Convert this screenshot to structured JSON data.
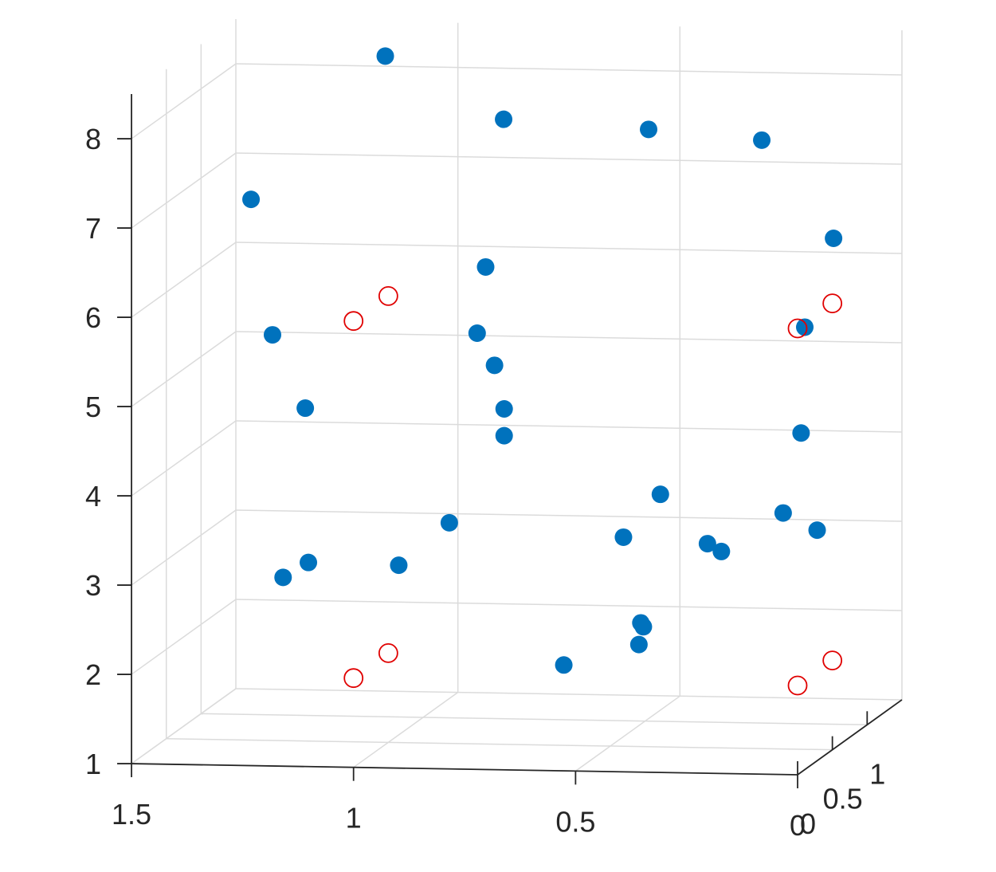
{
  "chart_data": {
    "type": "scatter",
    "title": "",
    "xlabel": "",
    "ylabel": "",
    "zlabel": "",
    "view": "3d",
    "grid": true,
    "colors": {
      "filled": "#0072BD",
      "hollow": "#E00000",
      "grid": "#DBDBDB",
      "axis": "#262626"
    },
    "axes": {
      "x": {
        "lim": [
          0,
          1.5
        ],
        "reversed": true,
        "ticks": [
          1.5,
          1,
          0.5,
          0
        ],
        "tick_labels": [
          "1.5",
          "1",
          "0.5",
          "0"
        ]
      },
      "y": {
        "lim": [
          0,
          1.5
        ],
        "ticks": [
          0,
          0.5,
          1
        ],
        "tick_labels": [
          "0",
          "0.5",
          "1"
        ]
      },
      "z": {
        "lim": [
          1,
          8.5
        ],
        "ticks": [
          1,
          2,
          3,
          4,
          5,
          6,
          7,
          8
        ],
        "tick_labels": [
          "1",
          "2",
          "3",
          "4",
          "5",
          "6",
          "7",
          "8"
        ]
      }
    },
    "series": [
      {
        "marker": "filled-circle",
        "points": [
          {
            "x": 1.14,
            "y": 1.35,
            "z": 8.2
          },
          {
            "x": 0.5,
            "y": 1.05,
            "z": 7.6
          },
          {
            "x": 0.85,
            "y": 1.2,
            "z": 7.6
          },
          {
            "x": 0.3,
            "y": 1.4,
            "z": 7.3
          },
          {
            "x": 1.27,
            "y": 0.25,
            "z": 7.2
          },
          {
            "x": 0.82,
            "y": 0.75,
            "z": 6.2
          },
          {
            "x": 0.07,
            "y": 0.55,
            "z": 5.7
          },
          {
            "x": 0.06,
            "y": 0.9,
            "z": 6.5
          },
          {
            "x": 0.8,
            "y": 0.5,
            "z": 5.6
          },
          {
            "x": 1.3,
            "y": 0.75,
            "z": 5.4
          },
          {
            "x": 0.0,
            "y": 0.05,
            "z": 4.8
          },
          {
            "x": 1.14,
            "y": 0.2,
            "z": 4.9
          },
          {
            "x": 0.8,
            "y": 0.75,
            "z": 5.1
          },
          {
            "x": 0.7,
            "y": 0.25,
            "z": 4.9
          },
          {
            "x": 0.7,
            "y": 0.25,
            "z": 4.6
          },
          {
            "x": 0.8,
            "y": 0.1,
            "z": 3.7
          },
          {
            "x": 0.25,
            "y": 0.3,
            "z": 3.4
          },
          {
            "x": 1.19,
            "y": 0.2,
            "z": 3.0
          },
          {
            "x": 0.45,
            "y": 0.9,
            "z": 3.6
          },
          {
            "x": 0.05,
            "y": 0.6,
            "z": 3.4
          },
          {
            "x": 0.15,
            "y": 0.75,
            "z": 3.5
          },
          {
            "x": 1.18,
            "y": 0.5,
            "z": 3.0
          },
          {
            "x": 0.4,
            "y": 0.05,
            "z": 3.6
          },
          {
            "x": 0.25,
            "y": 0.5,
            "z": 3.2
          },
          {
            "x": 0.41,
            "y": 0.4,
            "z": 2.4
          },
          {
            "x": 0.4,
            "y": 0.3,
            "z": 2.5
          },
          {
            "x": 0.42,
            "y": 0.4,
            "z": 2.2
          },
          {
            "x": 1.0,
            "y": 0.65,
            "z": 2.9
          },
          {
            "x": 0.55,
            "y": 0.15,
            "z": 2.1
          }
        ]
      },
      {
        "marker": "hollow-circle",
        "points": [
          {
            "x": 1.0,
            "y": 0.0,
            "z": 6.0
          },
          {
            "x": 1.0,
            "y": 0.5,
            "z": 6.0
          },
          {
            "x": 0.0,
            "y": 0.0,
            "z": 6.0
          },
          {
            "x": 0.0,
            "y": 0.5,
            "z": 6.0
          },
          {
            "x": 1.0,
            "y": 0.0,
            "z": 2.0
          },
          {
            "x": 1.0,
            "y": 0.5,
            "z": 2.0
          },
          {
            "x": 0.0,
            "y": 0.0,
            "z": 2.0
          },
          {
            "x": 0.0,
            "y": 0.5,
            "z": 2.0
          }
        ]
      }
    ]
  }
}
